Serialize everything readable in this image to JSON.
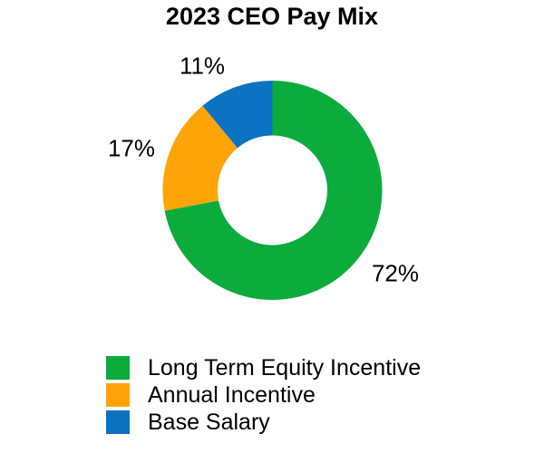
{
  "title": "2023 CEO Pay Mix",
  "chart_data": {
    "type": "pie",
    "subtype": "donut",
    "title": "2023 CEO Pay Mix",
    "start_angle": "top",
    "direction": "clockwise",
    "inner_radius_ratio": 0.5,
    "legend_position": "bottom-left",
    "labels": "outside-percent",
    "segments": [
      {
        "label": "Long Term Equity Incentive",
        "value": 72,
        "pct_label": "72%",
        "color": "#0BAC3C"
      },
      {
        "label": "Annual Incentive",
        "value": 17,
        "pct_label": "17%",
        "color": "#FFA408"
      },
      {
        "label": "Base Salary",
        "value": 11,
        "pct_label": "11%",
        "color": "#0C72C2"
      }
    ]
  }
}
